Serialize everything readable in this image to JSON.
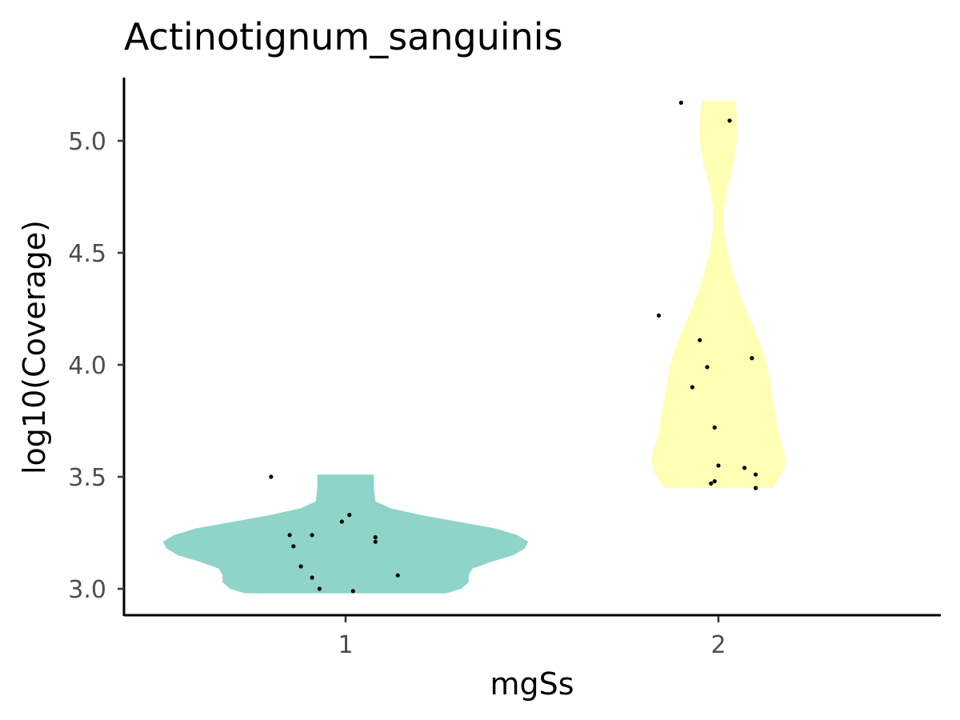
{
  "chart_data": {
    "type": "violin",
    "title": "Actinotignum_sanguinis",
    "xlabel": "mgSs",
    "ylabel": "log10(Coverage)",
    "categories": [
      "1",
      "2"
    ],
    "ylim": [
      2.88,
      5.27
    ],
    "yticks": [
      3.0,
      3.5,
      4.0,
      4.5,
      5.0
    ],
    "ytick_labels": [
      "3.0",
      "3.5",
      "4.0",
      "4.5",
      "5.0"
    ],
    "grid": false,
    "legend": "none",
    "colors": {
      "1": "#8ed4c8",
      "2": "#ffffb3"
    },
    "violins": [
      {
        "category": "1",
        "range": [
          2.98,
          3.51
        ],
        "profile": [
          [
            2.98,
            0.27
          ],
          [
            3.0,
            0.31
          ],
          [
            3.03,
            0.33
          ],
          [
            3.06,
            0.33
          ],
          [
            3.09,
            0.34
          ],
          [
            3.12,
            0.39
          ],
          [
            3.15,
            0.45
          ],
          [
            3.18,
            0.48
          ],
          [
            3.21,
            0.49
          ],
          [
            3.24,
            0.46
          ],
          [
            3.27,
            0.4
          ],
          [
            3.3,
            0.3
          ],
          [
            3.33,
            0.2
          ],
          [
            3.36,
            0.12
          ],
          [
            3.39,
            0.08
          ],
          [
            3.42,
            0.078
          ],
          [
            3.45,
            0.076
          ],
          [
            3.48,
            0.076
          ],
          [
            3.51,
            0.076
          ]
        ]
      },
      {
        "category": "2",
        "range": [
          3.45,
          5.18
        ],
        "profile": [
          [
            3.45,
            0.145
          ],
          [
            3.49,
            0.16
          ],
          [
            3.53,
            0.175
          ],
          [
            3.57,
            0.18
          ],
          [
            3.62,
            0.175
          ],
          [
            3.7,
            0.16
          ],
          [
            3.8,
            0.15
          ],
          [
            3.9,
            0.14
          ],
          [
            4.0,
            0.13
          ],
          [
            4.1,
            0.11
          ],
          [
            4.2,
            0.085
          ],
          [
            4.3,
            0.06
          ],
          [
            4.4,
            0.04
          ],
          [
            4.5,
            0.025
          ],
          [
            4.6,
            0.015
          ],
          [
            4.7,
            0.015
          ],
          [
            4.8,
            0.025
          ],
          [
            4.9,
            0.04
          ],
          [
            5.0,
            0.05
          ],
          [
            5.1,
            0.05
          ],
          [
            5.18,
            0.045
          ]
        ]
      }
    ],
    "points": [
      {
        "group": "1",
        "x": 0.8,
        "y": 3.5
      },
      {
        "group": "1",
        "x": 0.85,
        "y": 3.24
      },
      {
        "group": "1",
        "x": 0.86,
        "y": 3.19
      },
      {
        "group": "1",
        "x": 0.88,
        "y": 3.1
      },
      {
        "group": "1",
        "x": 0.91,
        "y": 3.24
      },
      {
        "group": "1",
        "x": 0.91,
        "y": 3.05
      },
      {
        "group": "1",
        "x": 0.93,
        "y": 3.0
      },
      {
        "group": "1",
        "x": 0.99,
        "y": 3.3
      },
      {
        "group": "1",
        "x": 1.01,
        "y": 3.33
      },
      {
        "group": "1",
        "x": 1.02,
        "y": 2.99
      },
      {
        "group": "1",
        "x": 1.08,
        "y": 3.23
      },
      {
        "group": "1",
        "x": 1.08,
        "y": 3.21
      },
      {
        "group": "1",
        "x": 1.14,
        "y": 3.06
      },
      {
        "group": "2",
        "x": 1.84,
        "y": 4.22
      },
      {
        "group": "2",
        "x": 1.9,
        "y": 5.17
      },
      {
        "group": "2",
        "x": 1.93,
        "y": 3.9
      },
      {
        "group": "2",
        "x": 1.95,
        "y": 4.11
      },
      {
        "group": "2",
        "x": 1.97,
        "y": 3.99
      },
      {
        "group": "2",
        "x": 1.98,
        "y": 3.47
      },
      {
        "group": "2",
        "x": 1.99,
        "y": 3.48
      },
      {
        "group": "2",
        "x": 1.99,
        "y": 3.72
      },
      {
        "group": "2",
        "x": 2.0,
        "y": 3.55
      },
      {
        "group": "2",
        "x": 2.03,
        "y": 5.09
      },
      {
        "group": "2",
        "x": 2.07,
        "y": 3.54
      },
      {
        "group": "2",
        "x": 2.09,
        "y": 4.03
      },
      {
        "group": "2",
        "x": 2.1,
        "y": 3.51
      },
      {
        "group": "2",
        "x": 2.1,
        "y": 3.45
      }
    ]
  }
}
